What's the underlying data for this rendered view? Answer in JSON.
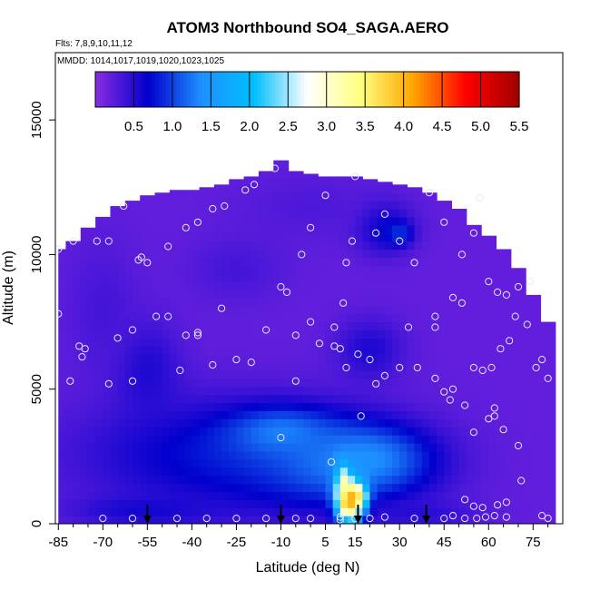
{
  "chart_data": {
    "type": "heatmap",
    "title": "ATOM3 Northbound SO4_SAGA.AERO",
    "flights_note": "Flts: 7,8,9,10,11,12",
    "dates_note": "MMDD: 1014,1017,1019,1020,1023,1025",
    "xlabel": "Latitude (deg N)",
    "ylabel": "Altitude (m)",
    "xlim": [
      -86,
      85
    ],
    "ylim": [
      0,
      17500
    ],
    "x_ticks": [
      "-85",
      "-70",
      "-55",
      "-40",
      "-25",
      "-10",
      "5",
      "15",
      "30",
      "45",
      "60",
      "75"
    ],
    "x_tick_values": [
      -85,
      -70,
      -55,
      -40,
      -25,
      -10,
      5,
      15,
      30,
      45,
      60,
      75
    ],
    "y_ticks": [
      "0",
      "5000",
      "10000",
      "15000"
    ],
    "y_tick_values": [
      0,
      5000,
      10000,
      15000
    ],
    "colorbar": {
      "min": 0,
      "max": 5.5,
      "tick_labels": [
        "0.5",
        "1.0",
        "1.5",
        "2.0",
        "2.5",
        "3.0",
        "3.5",
        "4.0",
        "4.5",
        "5.0",
        "5.5"
      ],
      "tick_values": [
        0.5,
        1.0,
        1.5,
        2.0,
        2.5,
        3.0,
        3.5,
        4.0,
        4.5,
        5.0,
        5.5
      ],
      "colors": [
        "#8a2be2",
        "#0000cd",
        "#1e90ff",
        "#00bfff",
        "#ffffff",
        "#ffff80",
        "#ffa500",
        "#ff0000",
        "#a00000"
      ]
    },
    "background_value": 0.2,
    "column_tops": [
      {
        "lat": -85,
        "top": 10200
      },
      {
        "lat": -80,
        "top": 10500
      },
      {
        "lat": -75,
        "top": 11000
      },
      {
        "lat": -70,
        "top": 11400
      },
      {
        "lat": -65,
        "top": 11800
      },
      {
        "lat": -60,
        "top": 12000
      },
      {
        "lat": -55,
        "top": 12200
      },
      {
        "lat": -50,
        "top": 12300
      },
      {
        "lat": -45,
        "top": 12400
      },
      {
        "lat": -40,
        "top": 12400
      },
      {
        "lat": -35,
        "top": 12500
      },
      {
        "lat": -30,
        "top": 12600
      },
      {
        "lat": -25,
        "top": 12800
      },
      {
        "lat": -20,
        "top": 12900
      },
      {
        "lat": -15,
        "top": 13100
      },
      {
        "lat": -10,
        "top": 13500
      },
      {
        "lat": -5,
        "top": 13100
      },
      {
        "lat": 0,
        "top": 13000
      },
      {
        "lat": 5,
        "top": 12900
      },
      {
        "lat": 10,
        "top": 12900
      },
      {
        "lat": 15,
        "top": 12900
      },
      {
        "lat": 20,
        "top": 12800
      },
      {
        "lat": 25,
        "top": 12700
      },
      {
        "lat": 30,
        "top": 12600
      },
      {
        "lat": 35,
        "top": 12500
      },
      {
        "lat": 40,
        "top": 12300
      },
      {
        "lat": 45,
        "top": 12000
      },
      {
        "lat": 50,
        "top": 11700
      },
      {
        "lat": 55,
        "top": 11100
      },
      {
        "lat": 60,
        "top": 10700
      },
      {
        "lat": 65,
        "top": 10200
      },
      {
        "lat": 70,
        "top": 9500
      },
      {
        "lat": 75,
        "top": 8500
      },
      {
        "lat": 80,
        "top": 7500
      }
    ],
    "blobs": [
      {
        "lat": -30,
        "alt": 2600,
        "rlat": 58,
        "ralt": 2600,
        "value": 0.75
      },
      {
        "lat": 5,
        "alt": 2200,
        "rlat": 38,
        "ralt": 2000,
        "value": 1.0
      },
      {
        "lat": 18,
        "alt": 2400,
        "rlat": 26,
        "ralt": 1500,
        "value": 1.4
      },
      {
        "lat": -10,
        "alt": 3400,
        "rlat": 22,
        "ralt": 1100,
        "value": 1.3
      },
      {
        "lat": 13,
        "alt": 800,
        "rlat": 5,
        "ralt": 900,
        "value": 5.0
      },
      {
        "lat": 11,
        "alt": 1400,
        "rlat": 3,
        "ralt": 900,
        "value": 3.3
      },
      {
        "lat": 16,
        "alt": 900,
        "rlat": 4,
        "ralt": 700,
        "value": 3.8
      },
      {
        "lat": -55,
        "alt": 500,
        "rlat": 30,
        "ralt": 700,
        "value": 0.6
      },
      {
        "lat": 35,
        "alt": 400,
        "rlat": 25,
        "ralt": 600,
        "value": 0.5
      },
      {
        "lat": 25,
        "alt": 11000,
        "rlat": 12,
        "ralt": 1200,
        "value": 0.7
      },
      {
        "lat": 30,
        "alt": 10800,
        "rlat": 5,
        "ralt": 500,
        "value": 1.0
      },
      {
        "lat": -55,
        "alt": 5700,
        "rlat": 14,
        "ralt": 2200,
        "value": 0.55
      },
      {
        "lat": 20,
        "alt": 6500,
        "rlat": 14,
        "ralt": 1400,
        "value": 0.55
      },
      {
        "lat": -70,
        "alt": 8000,
        "rlat": 15,
        "ralt": 3200,
        "value": 0.35
      },
      {
        "lat": 0,
        "alt": 11800,
        "rlat": 30,
        "ralt": 1500,
        "value": 0.3
      },
      {
        "lat": -25,
        "alt": 9500,
        "rlat": 20,
        "ralt": 1500,
        "value": 0.35
      }
    ],
    "flight_points": [
      [
        -85,
        10200
      ],
      [
        -80,
        10500
      ],
      [
        -78,
        6600
      ],
      [
        -77,
        6200
      ],
      [
        -76,
        6500
      ],
      [
        -81,
        5300
      ],
      [
        -85,
        7800
      ],
      [
        -72,
        10500
      ],
      [
        -68,
        10500
      ],
      [
        -63,
        11800
      ],
      [
        -58,
        9800
      ],
      [
        -57,
        9900
      ],
      [
        -55,
        9700
      ],
      [
        -48,
        10300
      ],
      [
        -42,
        11000
      ],
      [
        -38,
        11200
      ],
      [
        -33,
        11700
      ],
      [
        -29,
        11800
      ],
      [
        -22,
        12400
      ],
      [
        -19,
        12600
      ],
      [
        -12,
        13200
      ],
      [
        -10,
        8800
      ],
      [
        -8,
        8600
      ],
      [
        -3,
        10000
      ],
      [
        0,
        11000
      ],
      [
        5,
        12200
      ],
      [
        8,
        7300
      ],
      [
        11,
        8200
      ],
      [
        12,
        9700
      ],
      [
        14,
        10500
      ],
      [
        15,
        12900
      ],
      [
        22,
        10800
      ],
      [
        25,
        11500
      ],
      [
        30,
        10500
      ],
      [
        35,
        9700
      ],
      [
        40,
        12300
      ],
      [
        45,
        11200
      ],
      [
        51,
        10000
      ],
      [
        55,
        10800
      ],
      [
        57,
        12100
      ],
      [
        60,
        9000
      ],
      [
        63,
        8600
      ],
      [
        66,
        8500
      ],
      [
        70,
        8800
      ],
      [
        74,
        9000
      ],
      [
        -65,
        6900
      ],
      [
        -48,
        7700
      ],
      [
        -42,
        7000
      ],
      [
        -38,
        7100
      ],
      [
        -33,
        5900
      ],
      [
        -38,
        7000
      ],
      [
        -30,
        8000
      ],
      [
        -25,
        6100
      ],
      [
        -20,
        6000
      ],
      [
        -15,
        7200
      ],
      [
        -5,
        7000
      ],
      [
        0,
        7500
      ],
      [
        -5,
        5300
      ],
      [
        3,
        6700
      ],
      [
        8,
        6600
      ],
      [
        10,
        6500
      ],
      [
        12,
        5800
      ],
      [
        16,
        6300
      ],
      [
        20,
        6100
      ],
      [
        22,
        5200
      ],
      [
        25,
        5500
      ],
      [
        30,
        5800
      ],
      [
        36,
        5800
      ],
      [
        42,
        5400
      ],
      [
        48,
        5000
      ],
      [
        55,
        5800
      ],
      [
        58,
        5700
      ],
      [
        61,
        5800
      ],
      [
        64,
        6500
      ],
      [
        67,
        6800
      ],
      [
        69,
        7700
      ],
      [
        73,
        7400
      ],
      [
        76,
        5800
      ],
      [
        78,
        6100
      ],
      [
        80,
        5400
      ],
      [
        62,
        4300
      ],
      [
        60,
        3900
      ],
      [
        55,
        3400
      ],
      [
        52,
        4400
      ],
      [
        47,
        4600
      ],
      [
        45,
        4900
      ],
      [
        42,
        7700
      ],
      [
        48,
        8400
      ],
      [
        51,
        8200
      ],
      [
        62,
        4000
      ],
      [
        65,
        3500
      ],
      [
        70,
        2900
      ],
      [
        71,
        1600
      ],
      [
        66,
        800
      ],
      [
        63,
        700
      ],
      [
        58,
        600
      ],
      [
        55,
        650
      ],
      [
        52,
        900
      ],
      [
        -60,
        5300
      ],
      [
        -68,
        5200
      ],
      [
        -44,
        5700
      ],
      [
        -10,
        3200
      ],
      [
        7,
        2300
      ],
      [
        17,
        4000
      ],
      [
        -52,
        7700
      ],
      [
        -60,
        7200
      ],
      [
        42,
        7300
      ],
      [
        33,
        7300
      ],
      [
        -70,
        200
      ],
      [
        -60,
        200
      ],
      [
        -45,
        200
      ],
      [
        -35,
        200
      ],
      [
        -25,
        200
      ],
      [
        -15,
        200
      ],
      [
        -5,
        200
      ],
      [
        0,
        200
      ],
      [
        10,
        250
      ],
      [
        10,
        150
      ],
      [
        15,
        200
      ],
      [
        20,
        200
      ],
      [
        25,
        250
      ],
      [
        35,
        200
      ],
      [
        45,
        200
      ],
      [
        48,
        300
      ],
      [
        52,
        200
      ],
      [
        56,
        200
      ],
      [
        59,
        250
      ],
      [
        62,
        300
      ],
      [
        66,
        250
      ],
      [
        78,
        300
      ],
      [
        80,
        200
      ]
    ],
    "arrows": [
      {
        "lat": -55
      },
      {
        "lat": -10
      },
      {
        "lat": 16
      },
      {
        "lat": 39
      }
    ]
  }
}
